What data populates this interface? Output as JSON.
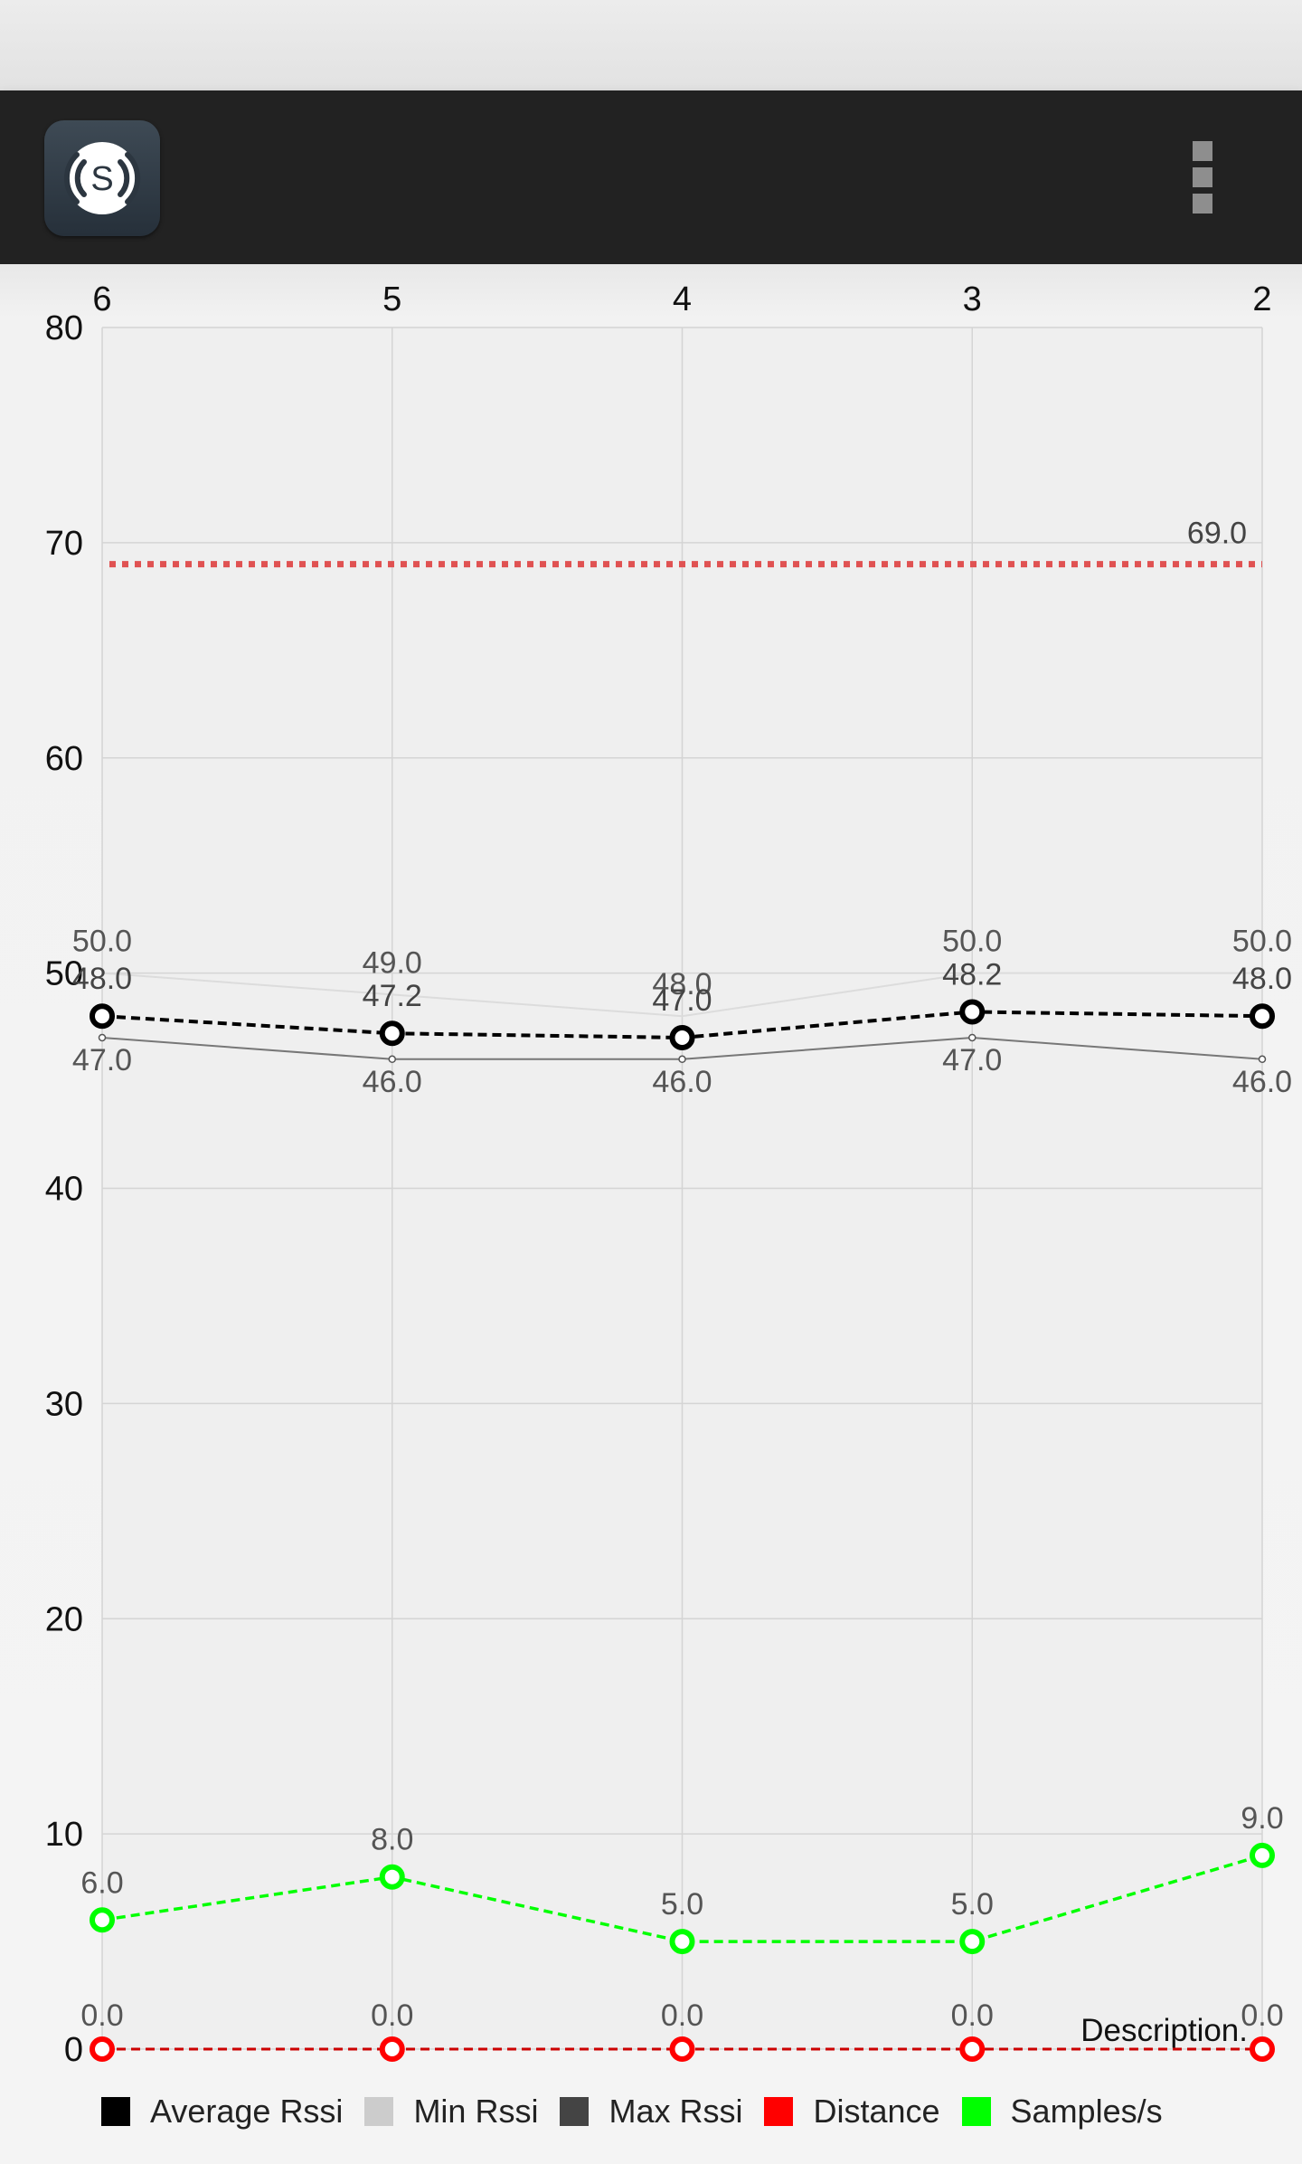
{
  "appbar": {
    "icon": "signal-s-app-icon",
    "icon_letter": "S",
    "overflow_icon": "more-vert-icon"
  },
  "colors": {
    "appbar_bg": "#222222",
    "average_rssi": "#000000",
    "min_rssi": "#cccccc",
    "max_rssi": "#444444",
    "distance": "#ff0000",
    "samples": "#00ff00"
  },
  "chart_data": {
    "type": "line",
    "x": [
      6,
      5,
      4,
      3,
      2
    ],
    "x_tick_labels": [
      "6",
      "5",
      "4",
      "3",
      "2"
    ],
    "x_axis_position": "top",
    "ylim": [
      0,
      80
    ],
    "y_ticks": [
      0,
      10,
      20,
      30,
      40,
      50,
      60,
      70,
      80
    ],
    "grid": true,
    "description": "Description.",
    "legend_position": "bottom-left",
    "series": [
      {
        "name": "Average Rssi",
        "values": [
          48.0,
          47.2,
          47.0,
          48.2,
          48.0
        ],
        "labels": [
          "48.0",
          "47.2",
          "47.0",
          "48.2",
          "48.0"
        ]
      },
      {
        "name": "Min Rssi",
        "values": [
          50.0,
          49.0,
          48.0,
          50.0,
          50.0
        ],
        "labels": [
          "50.0",
          "49.0",
          "48.0",
          "50.0",
          "50.0"
        ]
      },
      {
        "name": "Max Rssi",
        "values": [
          47.0,
          46.0,
          46.0,
          47.0,
          46.0
        ],
        "labels": [
          "47.0",
          "46.0",
          "46.0",
          "47.0",
          "46.0"
        ]
      },
      {
        "name": "Distance",
        "values": [
          0.0,
          0.0,
          0.0,
          0.0,
          0.0
        ],
        "labels": [
          "0.0",
          "0.0",
          "0.0",
          "0.0",
          "0.0"
        ]
      },
      {
        "name": "Samples/s",
        "values": [
          6.0,
          8.0,
          5.0,
          5.0,
          9.0
        ],
        "labels": [
          "6.0",
          "8.0",
          "5.0",
          "5.0",
          "9.0"
        ]
      }
    ],
    "reference_line": {
      "value": 69.0,
      "label": "69.0"
    }
  },
  "legend": [
    {
      "label": "Average Rssi",
      "color": "#000000"
    },
    {
      "label": "Min Rssi",
      "color": "#cccccc"
    },
    {
      "label": "Max Rssi",
      "color": "#444444"
    },
    {
      "label": "Distance",
      "color": "#ff0000"
    },
    {
      "label": "Samples/s",
      "color": "#00ff00"
    }
  ]
}
